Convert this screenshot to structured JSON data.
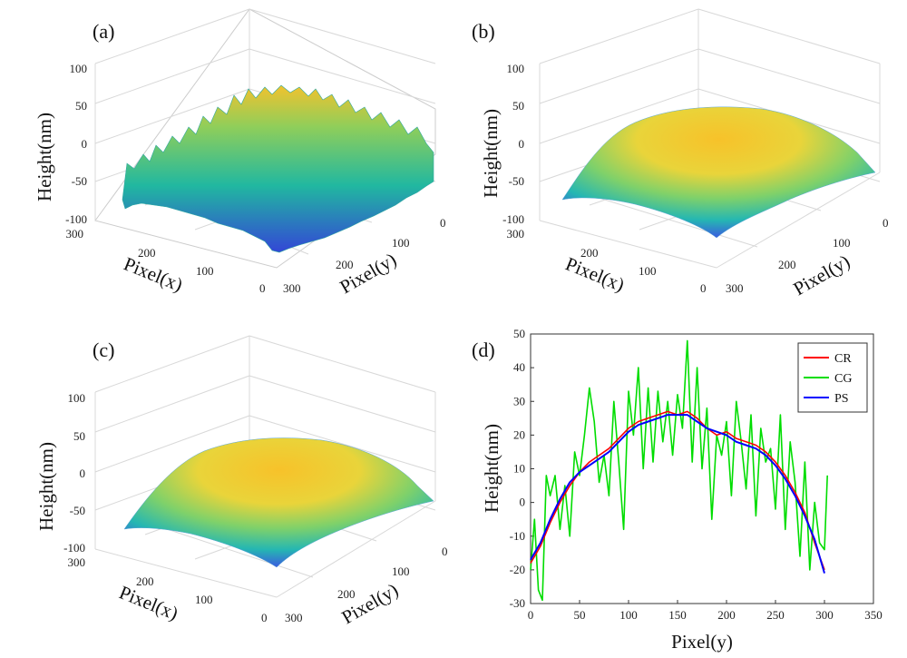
{
  "figure": {
    "panels": [
      {
        "label": "(a)",
        "zlabel": "Height(nm)",
        "xlabel": "Pixel(x)",
        "ylabel": "Pixel(y)",
        "zticks": [
          "100",
          "50",
          "0",
          "-50",
          "-100"
        ],
        "xticks": [
          "300",
          "200",
          "100",
          "0"
        ],
        "yticks": [
          "0",
          "100",
          "200",
          "300"
        ]
      },
      {
        "label": "(b)",
        "zlabel": "Height(nm)",
        "xlabel": "Pixel(x)",
        "ylabel": "Pixel(y)",
        "zticks": [
          "100",
          "50",
          "0",
          "-50",
          "-100"
        ],
        "xticks": [
          "300",
          "200",
          "100",
          "0"
        ],
        "yticks": [
          "0",
          "100",
          "200",
          "300"
        ]
      },
      {
        "label": "(c)",
        "zlabel": "Height(nm)",
        "xlabel": "Pixel(x)",
        "ylabel": "Pixel(y)",
        "zticks": [
          "100",
          "50",
          "0",
          "-50",
          "-100"
        ],
        "xticks": [
          "300",
          "200",
          "100",
          "0"
        ],
        "yticks": [
          "0",
          "100",
          "200",
          "300"
        ]
      },
      {
        "label": "(d)"
      }
    ]
  },
  "colors": {
    "CR": "#ff0000",
    "CG": "#00dd00",
    "PS": "#0000ff",
    "surface_low": "#3b4cc0",
    "surface_mid": "#21b8a0",
    "surface_high": "#f5c829"
  },
  "chart_data": [
    {
      "type": "surface",
      "title": "(a)",
      "xlabel": "Pixel(x)",
      "ylabel": "Pixel(y)",
      "zlabel": "Height(nm)",
      "xlim": [
        0,
        300
      ],
      "ylim": [
        0,
        300
      ],
      "zlim": [
        -100,
        100
      ],
      "description_values": {
        "surface": "noisy",
        "z_range": [
          -100,
          60
        ]
      }
    },
    {
      "type": "surface",
      "title": "(b)",
      "xlabel": "Pixel(x)",
      "ylabel": "Pixel(y)",
      "zlabel": "Height(nm)",
      "xlim": [
        0,
        300
      ],
      "ylim": [
        0,
        300
      ],
      "zlim": [
        -100,
        100
      ],
      "description_values": {
        "surface": "smooth dome",
        "z_range": [
          -85,
          30
        ]
      }
    },
    {
      "type": "surface",
      "title": "(c)",
      "xlabel": "Pixel(x)",
      "ylabel": "Pixel(y)",
      "zlabel": "Height(nm)",
      "xlim": [
        0,
        300
      ],
      "ylim": [
        0,
        300
      ],
      "zlim": [
        -100,
        100
      ],
      "description_values": {
        "surface": "smooth dome",
        "z_range": [
          -85,
          30
        ]
      }
    },
    {
      "type": "line",
      "title": "(d)",
      "xlabel": "Pixel(y)",
      "ylabel": "Height(nm)",
      "xlim": [
        0,
        350
      ],
      "ylim": [
        -30,
        50
      ],
      "xticks": [
        0,
        50,
        100,
        150,
        200,
        250,
        300,
        350
      ],
      "yticks": [
        -30,
        -20,
        -10,
        0,
        10,
        20,
        30,
        40,
        50
      ],
      "legend_position": "top-right",
      "series": [
        {
          "name": "CR",
          "color": "#ff0000",
          "x": [
            0,
            10,
            20,
            30,
            40,
            50,
            60,
            70,
            80,
            90,
            100,
            110,
            120,
            130,
            140,
            150,
            160,
            170,
            180,
            190,
            200,
            210,
            220,
            230,
            240,
            250,
            260,
            270,
            280,
            290,
            300
          ],
          "y": [
            -18,
            -13,
            -6,
            0,
            5,
            9,
            12,
            14,
            16,
            19,
            22,
            24,
            25,
            26,
            27,
            26,
            27,
            25,
            22,
            20,
            21,
            19,
            18,
            17,
            15,
            12,
            8,
            3,
            -3,
            -12,
            -20
          ]
        },
        {
          "name": "CG",
          "color": "#00dd00",
          "x": [
            0,
            4,
            8,
            12,
            16,
            20,
            25,
            30,
            35,
            40,
            45,
            50,
            55,
            60,
            65,
            70,
            75,
            80,
            85,
            90,
            95,
            100,
            105,
            110,
            115,
            120,
            125,
            130,
            135,
            140,
            145,
            150,
            155,
            160,
            165,
            170,
            175,
            180,
            185,
            190,
            195,
            200,
            205,
            210,
            215,
            220,
            225,
            230,
            235,
            240,
            245,
            250,
            255,
            260,
            265,
            270,
            275,
            280,
            285,
            290,
            295,
            300,
            303
          ],
          "y": [
            -20,
            -5,
            -26,
            -29,
            8,
            2,
            8,
            -8,
            5,
            -10,
            15,
            8,
            20,
            34,
            24,
            6,
            14,
            2,
            30,
            12,
            -8,
            33,
            20,
            40,
            10,
            34,
            12,
            33,
            18,
            30,
            14,
            32,
            22,
            48,
            12,
            40,
            10,
            28,
            -5,
            20,
            14,
            24,
            2,
            30,
            18,
            4,
            26,
            -4,
            22,
            12,
            16,
            -2,
            26,
            -8,
            18,
            6,
            -16,
            12,
            -20,
            0,
            -12,
            -14,
            8
          ]
        },
        {
          "name": "PS",
          "color": "#0000ff",
          "x": [
            0,
            10,
            20,
            30,
            40,
            50,
            60,
            70,
            80,
            90,
            100,
            110,
            120,
            130,
            140,
            150,
            160,
            170,
            180,
            190,
            200,
            210,
            220,
            230,
            240,
            250,
            260,
            270,
            280,
            290,
            300
          ],
          "y": [
            -17,
            -12,
            -5,
            1,
            6,
            9,
            11,
            13,
            15,
            18,
            21,
            23,
            24,
            25,
            26,
            26,
            26,
            24,
            22,
            21,
            20,
            18,
            17,
            16,
            14,
            11,
            7,
            2,
            -4,
            -11,
            -21
          ]
        }
      ]
    }
  ]
}
